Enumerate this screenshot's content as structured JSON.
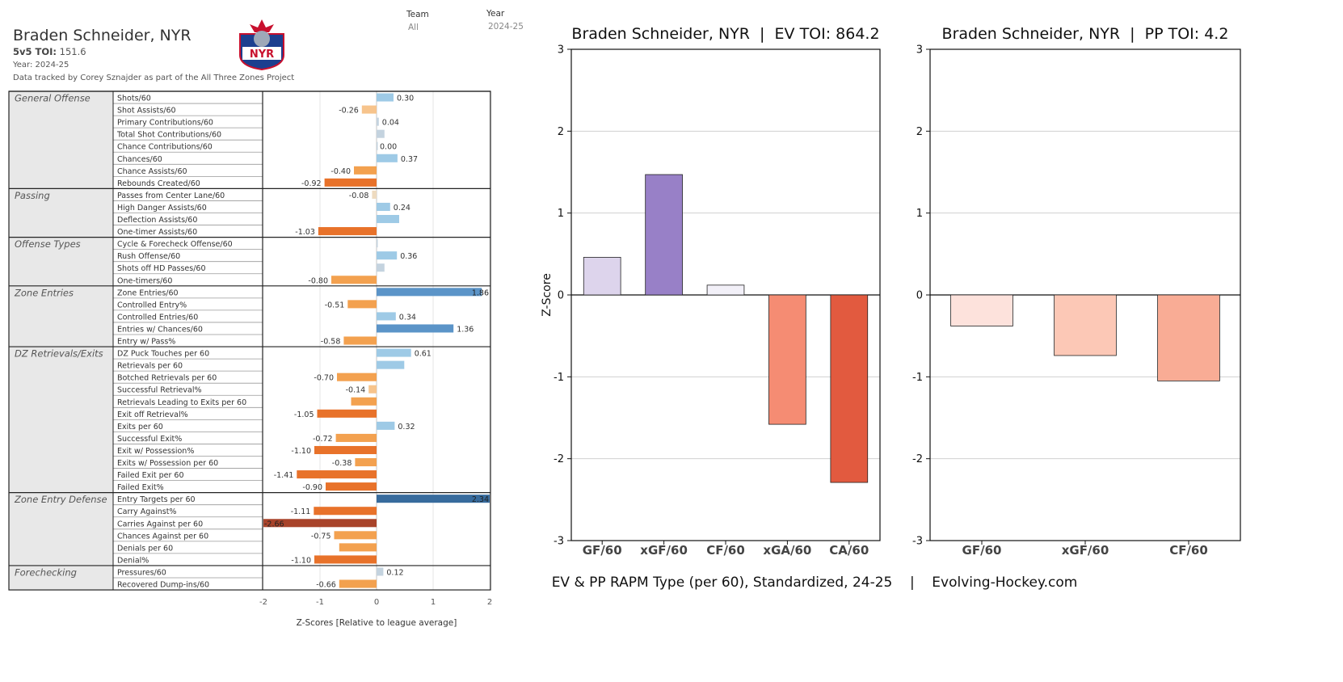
{
  "header": {
    "player": "Braden Schneider, NYR",
    "toi_label": "5v5 TOI:",
    "toi_value": "151.6",
    "year_line": "Year: 2024-25",
    "credit": "Data tracked by Corey Sznajder as part of the All Three Zones Project",
    "logo_text": "NYR"
  },
  "filters": {
    "team_label": "Team",
    "team_value": "All",
    "year_label": "Year",
    "year_value": "2024-25"
  },
  "colors": {
    "neg_dark": "#a8432a",
    "neg_strong": "#e8722a",
    "neg_mid": "#f3a14f",
    "neg_light": "#f7c48c",
    "neg_pale": "#eedbc0",
    "pos_pale": "#c4d3df",
    "pos_light": "#9ecae6",
    "pos_mid": "#5b94c8",
    "pos_dark": "#376b9d",
    "rapm_gf": "#ddd4ec",
    "rapm_xgf": "#9880c7",
    "rapm_cf": "#f2f0f8",
    "rapm_xga": "#f58c73",
    "rapm_ca": "#e25a3f",
    "pp_gf": "#fde2dc",
    "pp_xgf": "#fcc8b6",
    "pp_cf": "#f9ac95"
  },
  "chart_data": [
    {
      "type": "bar",
      "orientation": "horizontal",
      "xlabel": "Z-Scores [Relative to league average]",
      "xlim": [
        -2,
        2
      ],
      "xticks": [
        "-2",
        "-1",
        "0",
        "1",
        "2"
      ],
      "groups": [
        {
          "name": "General Offense",
          "metrics": [
            {
              "label": "Shots/60",
              "value": 0.3,
              "text": "0.30"
            },
            {
              "label": "Shot Assists/60",
              "value": -0.26,
              "text": "-0.26"
            },
            {
              "label": "Primary Contributions/60",
              "value": 0.04,
              "text": "0.04"
            },
            {
              "label": "Total Shot Contributions/60",
              "value": 0.14,
              "text": ""
            },
            {
              "label": "Chance Contributions/60",
              "value": 0.0,
              "text": "0.00"
            },
            {
              "label": "Chances/60",
              "value": 0.37,
              "text": "0.37"
            },
            {
              "label": "Chance Assists/60",
              "value": -0.4,
              "text": "-0.40"
            },
            {
              "label": "Rebounds Created/60",
              "value": -0.92,
              "text": "-0.92"
            }
          ]
        },
        {
          "name": "Passing",
          "metrics": [
            {
              "label": "Passes from Center Lane/60",
              "value": -0.08,
              "text": "-0.08"
            },
            {
              "label": "High Danger Assists/60",
              "value": 0.24,
              "text": "0.24"
            },
            {
              "label": "Deflection Assists/60",
              "value": 0.4,
              "text": ""
            },
            {
              "label": "One-timer Assists/60",
              "value": -1.03,
              "text": "-1.03"
            }
          ]
        },
        {
          "name": "Offense Types",
          "metrics": [
            {
              "label": "Cycle & Forecheck Offense/60",
              "value": 0.02,
              "text": ""
            },
            {
              "label": "Rush Offense/60",
              "value": 0.36,
              "text": "0.36"
            },
            {
              "label": "Shots off HD Passes/60",
              "value": 0.14,
              "text": ""
            },
            {
              "label": "One-timers/60",
              "value": -0.8,
              "text": "-0.80"
            }
          ]
        },
        {
          "name": "Zone Entries",
          "metrics": [
            {
              "label": "Zone Entries/60",
              "value": 1.86,
              "text": "1.86"
            },
            {
              "label": "Controlled Entry%",
              "value": -0.51,
              "text": "-0.51"
            },
            {
              "label": "Controlled Entries/60",
              "value": 0.34,
              "text": "0.34"
            },
            {
              "label": "Entries w/ Chances/60",
              "value": 1.36,
              "text": "1.36"
            },
            {
              "label": "Entry w/ Pass%",
              "value": -0.58,
              "text": "-0.58"
            }
          ]
        },
        {
          "name": "DZ Retrievals/Exits",
          "metrics": [
            {
              "label": "DZ Puck Touches per 60",
              "value": 0.61,
              "text": "0.61"
            },
            {
              "label": "Retrievals per 60",
              "value": 0.49,
              "text": ""
            },
            {
              "label": "Botched Retrievals per 60",
              "value": -0.7,
              "text": "-0.70"
            },
            {
              "label": "Successful Retrieval%",
              "value": -0.14,
              "text": "-0.14"
            },
            {
              "label": "Retrievals Leading to Exits per 60",
              "value": -0.45,
              "text": ""
            },
            {
              "label": "Exit off Retrieval%",
              "value": -1.05,
              "text": "-1.05"
            },
            {
              "label": "Exits per 60",
              "value": 0.32,
              "text": "0.32"
            },
            {
              "label": "Successful Exit%",
              "value": -0.72,
              "text": "-0.72"
            },
            {
              "label": "Exit w/ Possession%",
              "value": -1.1,
              "text": "-1.10"
            },
            {
              "label": "Exits w/ Possession per 60",
              "value": -0.38,
              "text": "-0.38"
            },
            {
              "label": "Failed Exit per 60",
              "value": -1.41,
              "text": "-1.41"
            },
            {
              "label": "Failed Exit%",
              "value": -0.9,
              "text": "-0.90"
            }
          ]
        },
        {
          "name": "Zone Entry Defense",
          "metrics": [
            {
              "label": "Entry Targets per 60",
              "value": 2.34,
              "text": "2.34"
            },
            {
              "label": "Carry Against%",
              "value": -1.11,
              "text": "-1.11"
            },
            {
              "label": "Carries Against per 60",
              "value": -2.66,
              "text": "-2.66"
            },
            {
              "label": "Chances Against per 60",
              "value": -0.75,
              "text": "-0.75"
            },
            {
              "label": "Denials per 60",
              "value": -0.66,
              "text": ""
            },
            {
              "label": "Denial%",
              "value": -1.1,
              "text": "-1.10"
            }
          ]
        },
        {
          "name": "Forechecking",
          "metrics": [
            {
              "label": "Pressures/60",
              "value": 0.12,
              "text": "0.12"
            },
            {
              "label": "Recovered Dump-ins/60",
              "value": -0.66,
              "text": "-0.66"
            }
          ]
        }
      ]
    },
    {
      "type": "bar",
      "title": "Braden Schneider, NYR  |  EV TOI: 864.2",
      "ylabel": "Z-Score",
      "ylim": [
        -3,
        3
      ],
      "yticks": [
        "-3",
        "-2",
        "-1",
        "0",
        "1",
        "2",
        "3"
      ],
      "grid": true,
      "categories": [
        "GF/60",
        "xGF/60",
        "CF/60",
        "xGA/60",
        "CA/60"
      ],
      "values": [
        0.46,
        1.47,
        0.12,
        -1.58,
        -2.29
      ]
    },
    {
      "type": "bar",
      "title": "Braden Schneider, NYR  |  PP TOI: 4.2",
      "ylim": [
        -3,
        3
      ],
      "yticks": [
        "-3",
        "-2",
        "-1",
        "0",
        "1",
        "2",
        "3"
      ],
      "grid": true,
      "categories": [
        "GF/60",
        "xGF/60",
        "CF/60"
      ],
      "values": [
        -0.38,
        -0.74,
        -1.05
      ]
    }
  ],
  "footer": {
    "caption": "EV & PP RAPM Type (per 60), Standardized, 24-25    |    Evolving-Hockey.com"
  }
}
